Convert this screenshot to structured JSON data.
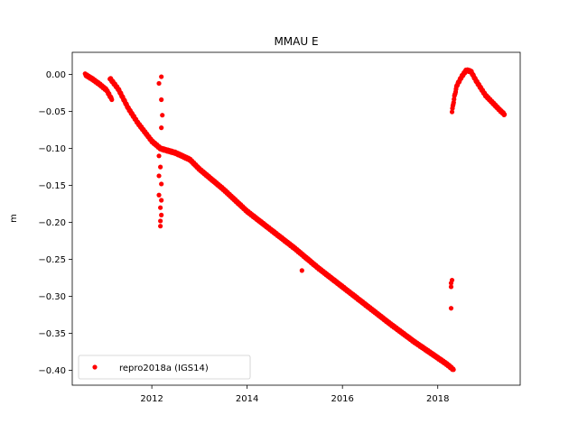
{
  "chart_data": {
    "type": "scatter",
    "title": "MMAU E",
    "xlabel": "",
    "ylabel": "m",
    "xlim": [
      2010.33,
      2019.73
    ],
    "ylim": [
      -0.42,
      0.03
    ],
    "xticks": [
      2012,
      2014,
      2016,
      2018
    ],
    "xtick_labels": [
      "2012",
      "2014",
      "2016",
      "2018"
    ],
    "yticks": [
      0.0,
      -0.05,
      -0.1,
      -0.15,
      -0.2,
      -0.25,
      -0.3,
      -0.35,
      -0.4
    ],
    "ytick_labels": [
      "0.00",
      "−0.05",
      "−0.10",
      "−0.15",
      "−0.20",
      "−0.25",
      "−0.30",
      "−0.35",
      "−0.40"
    ],
    "grid": false,
    "legend_position": "lower-left",
    "series": [
      {
        "name": "repro2018a (IGS14)",
        "color": "#ff0000",
        "marker": "dot",
        "segments": [
          {
            "x": [
              2010.6,
              2010.75,
              2010.9,
              2011.05,
              2011.12,
              2011.16
            ],
            "y": [
              0.0,
              -0.006,
              -0.013,
              -0.021,
              -0.029,
              -0.034
            ]
          },
          {
            "x": [
              2011.12,
              2011.3,
              2011.5,
              2011.7,
              2012.0,
              2012.18,
              2012.5,
              2012.8,
              2013.0,
              2013.5,
              2014.0,
              2014.5,
              2015.0,
              2015.5,
              2016.0,
              2016.5,
              2017.0,
              2017.5,
              2018.0,
              2018.2,
              2018.33
            ],
            "y": [
              -0.005,
              -0.02,
              -0.045,
              -0.065,
              -0.09,
              -0.1,
              -0.106,
              -0.115,
              -0.128,
              -0.155,
              -0.185,
              -0.21,
              -0.235,
              -0.262,
              -0.287,
              -0.312,
              -0.337,
              -0.361,
              -0.383,
              -0.392,
              -0.399
            ]
          },
          {
            "x": [
              2018.3,
              2018.35,
              2018.4,
              2018.5,
              2018.6,
              2018.7,
              2018.8,
              2018.9,
              2019.0,
              2019.15,
              2019.3,
              2019.4
            ],
            "y": [
              -0.05,
              -0.03,
              -0.015,
              -0.003,
              0.006,
              0.004,
              -0.008,
              -0.018,
              -0.028,
              -0.038,
              -0.048,
              -0.054
            ]
          }
        ],
        "points": [
          {
            "x": 2012.15,
            "y": -0.012
          },
          {
            "x": 2012.2,
            "y": -0.003
          },
          {
            "x": 2012.2,
            "y": -0.034
          },
          {
            "x": 2012.22,
            "y": -0.055
          },
          {
            "x": 2012.2,
            "y": -0.072
          },
          {
            "x": 2012.15,
            "y": -0.11
          },
          {
            "x": 2012.18,
            "y": -0.125
          },
          {
            "x": 2012.15,
            "y": -0.137
          },
          {
            "x": 2012.2,
            "y": -0.148
          },
          {
            "x": 2012.15,
            "y": -0.163
          },
          {
            "x": 2012.2,
            "y": -0.17
          },
          {
            "x": 2012.18,
            "y": -0.18
          },
          {
            "x": 2012.2,
            "y": -0.19
          },
          {
            "x": 2012.18,
            "y": -0.198
          },
          {
            "x": 2012.18,
            "y": -0.205
          },
          {
            "x": 2015.15,
            "y": -0.265
          },
          {
            "x": 2018.3,
            "y": -0.278
          },
          {
            "x": 2018.28,
            "y": -0.282
          },
          {
            "x": 2018.28,
            "y": -0.287
          },
          {
            "x": 2018.28,
            "y": -0.316
          }
        ]
      }
    ]
  }
}
